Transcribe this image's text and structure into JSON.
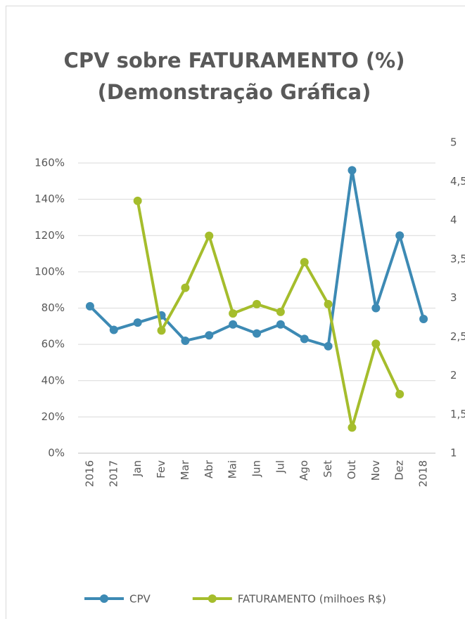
{
  "chart_data": {
    "type": "line",
    "title": "CPV sobre FATURAMENTO (%)",
    "subtitle": "(Demonstração Gráfica)",
    "categories": [
      "2016",
      "2017",
      "Jan",
      "Fev",
      "Mar",
      "Abr",
      "Mai",
      "Jun",
      "Jul",
      "Ago",
      "Set",
      "Out",
      "Nov",
      "Dez",
      "2018"
    ],
    "series": [
      {
        "name": "CPV",
        "color": "#3d8ab4",
        "values": [
          81,
          68,
          72,
          76,
          62,
          65,
          71,
          66,
          71,
          63,
          59,
          156,
          80,
          120,
          74
        ]
      },
      {
        "name": "FATURAMENTO (milhoes R$)",
        "color": "#a5bd2c",
        "axis": "y2",
        "values": [
          null,
          null,
          4.25,
          2.58,
          3.13,
          3.8,
          2.8,
          2.92,
          2.82,
          3.46,
          2.92,
          1.33,
          2.41,
          1.76,
          null
        ]
      }
    ],
    "ylim": [
      0,
      160
    ],
    "yticks": [
      {
        "value": 0,
        "label": "0%"
      },
      {
        "value": 20,
        "label": "20%"
      },
      {
        "value": 40,
        "label": "40%"
      },
      {
        "value": 60,
        "label": "60%"
      },
      {
        "value": 80,
        "label": "80%"
      },
      {
        "value": 100,
        "label": "100%"
      },
      {
        "value": 120,
        "label": "120%"
      },
      {
        "value": 140,
        "label": "140%"
      },
      {
        "value": 160,
        "label": "160%"
      }
    ],
    "y2lim": [
      1,
      5
    ],
    "y2ticks": [
      1,
      {
        "value": 1.5,
        "label": "1,5"
      },
      2,
      {
        "value": 2.5,
        "label": "2,5"
      },
      3,
      {
        "value": 3.5,
        "label": "3,5"
      },
      4,
      {
        "value": 4.5,
        "label": "4,5"
      },
      5
    ],
    "grid": true,
    "legend": "bottom"
  }
}
